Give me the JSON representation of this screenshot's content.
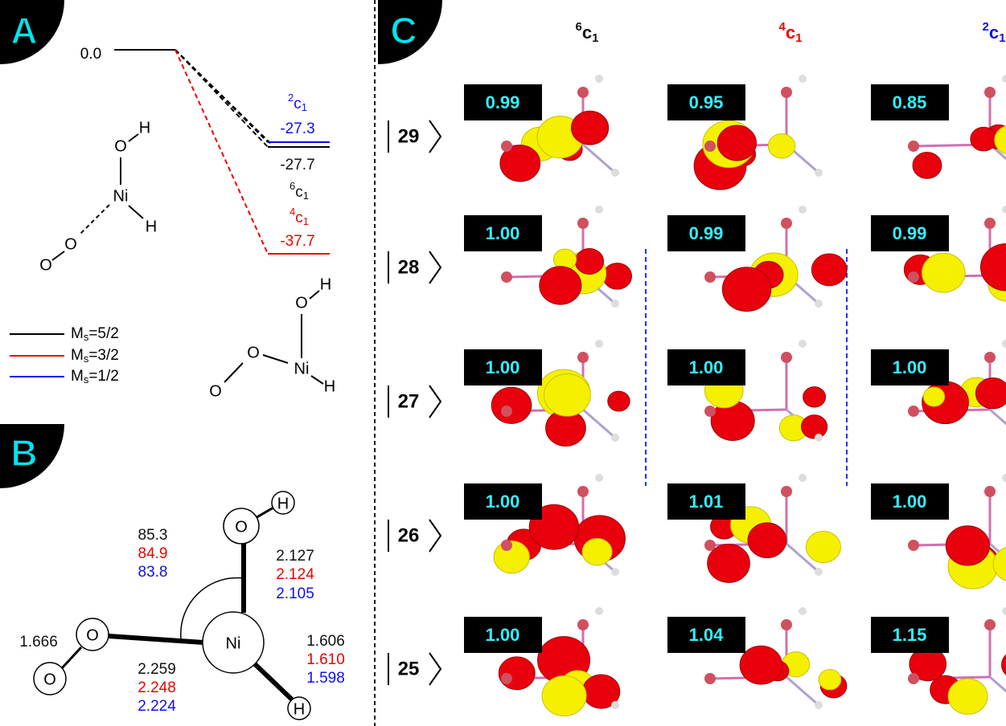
{
  "panel_labels": [
    "A",
    "B",
    "C"
  ],
  "panel_a": {
    "reference": "0.0",
    "levels": [
      {
        "state": {
          "sup": "2",
          "base": "c",
          "sub": "1"
        },
        "energy": "-27.3"
      },
      {
        "state": {
          "sup": "6",
          "base": "c",
          "sub": "1"
        },
        "energy": "-27.7"
      },
      {
        "state": {
          "sup": "4",
          "base": "c",
          "sub": "1"
        },
        "energy": "-37.7"
      }
    ],
    "legend": [
      {
        "base": "M",
        "sub": "s",
        "text": "=5/2"
      },
      {
        "base": "M",
        "sub": "s",
        "text": "=3/2"
      },
      {
        "base": "M",
        "sub": "s",
        "text": "=1/2"
      }
    ],
    "structure_1": {
      "atoms": [
        "O",
        "H",
        "Ni",
        "H",
        "O",
        "O"
      ]
    },
    "structure_2": {
      "atoms": [
        "H",
        "O",
        "Ni",
        "H",
        "O",
        "O"
      ]
    }
  },
  "panel_b": {
    "atoms": [
      "O",
      "H",
      "Ni",
      "O",
      "O",
      "H"
    ],
    "angle": [
      "85.3",
      "84.9",
      "83.8"
    ],
    "ni_oh": [
      "2.127",
      "2.124",
      "2.105"
    ],
    "o_o": "1.666",
    "ni_o": [
      "2.259",
      "2.248",
      "2.224"
    ],
    "ni_h": [
      "1.606",
      "1.610",
      "1.598"
    ]
  },
  "panel_c": {
    "columns": [
      {
        "sup": "6",
        "base": "c",
        "sub": "1"
      },
      {
        "sup": "4",
        "base": "c",
        "sub": "1"
      },
      {
        "sup": "2",
        "base": "c",
        "sub": "1"
      }
    ],
    "rows": [
      {
        "orbital": "29",
        "occupations": [
          "0.99",
          "0.95",
          "0.85"
        ]
      },
      {
        "orbital": "28",
        "occupations": [
          "1.00",
          "0.99",
          "0.99"
        ]
      },
      {
        "orbital": "27",
        "occupations": [
          "1.00",
          "1.00",
          "1.00"
        ]
      },
      {
        "orbital": "26",
        "occupations": [
          "1.00",
          "1.01",
          "1.00"
        ]
      },
      {
        "orbital": "25",
        "occupations": [
          "1.00",
          "1.04",
          "1.15"
        ]
      }
    ]
  }
}
